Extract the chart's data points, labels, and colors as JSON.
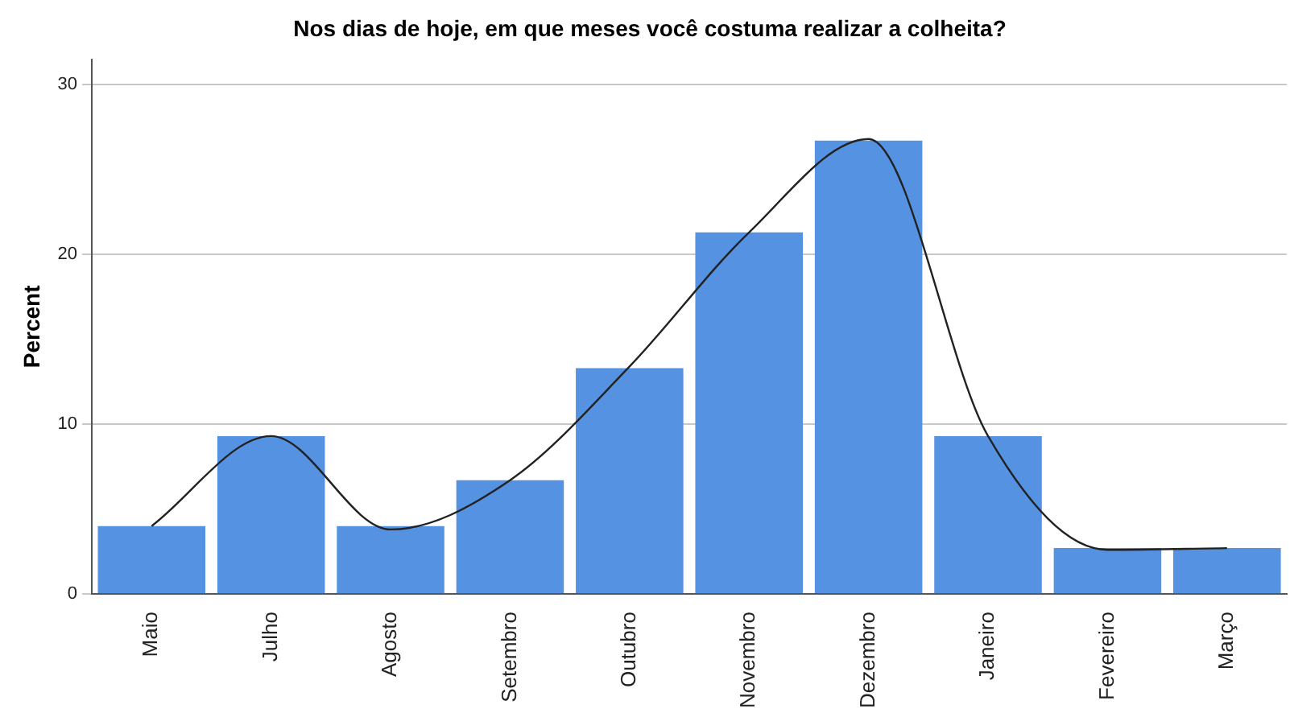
{
  "chart_data": {
    "type": "bar",
    "title": "Nos dias de hoje, em que meses você costuma realizar a colheita?",
    "ylabel": "Percent",
    "categories": [
      "Maio",
      "Julho",
      "Agosto",
      "Setembro",
      "Outubro",
      "Novembro",
      "Dezembro",
      "Janeiro",
      "Fevereiro",
      "Março"
    ],
    "series": [
      {
        "color": "#5592e2",
        "values": [
          4.0,
          9.3,
          4.0,
          6.7,
          13.3,
          21.3,
          26.7,
          9.3,
          2.7,
          2.7
        ]
      },
      {
        "type": "line",
        "color": "#222222",
        "values": [
          4.0,
          9.3,
          3.8,
          6.7,
          13.4,
          21.3,
          26.8,
          9.3,
          2.6,
          2.7
        ]
      }
    ],
    "ylim": [
      0,
      31.5
    ],
    "yticks": [
      0,
      10,
      20,
      30
    ],
    "grid": "y",
    "legend": false,
    "marker": "none",
    "line_style": "solid"
  }
}
